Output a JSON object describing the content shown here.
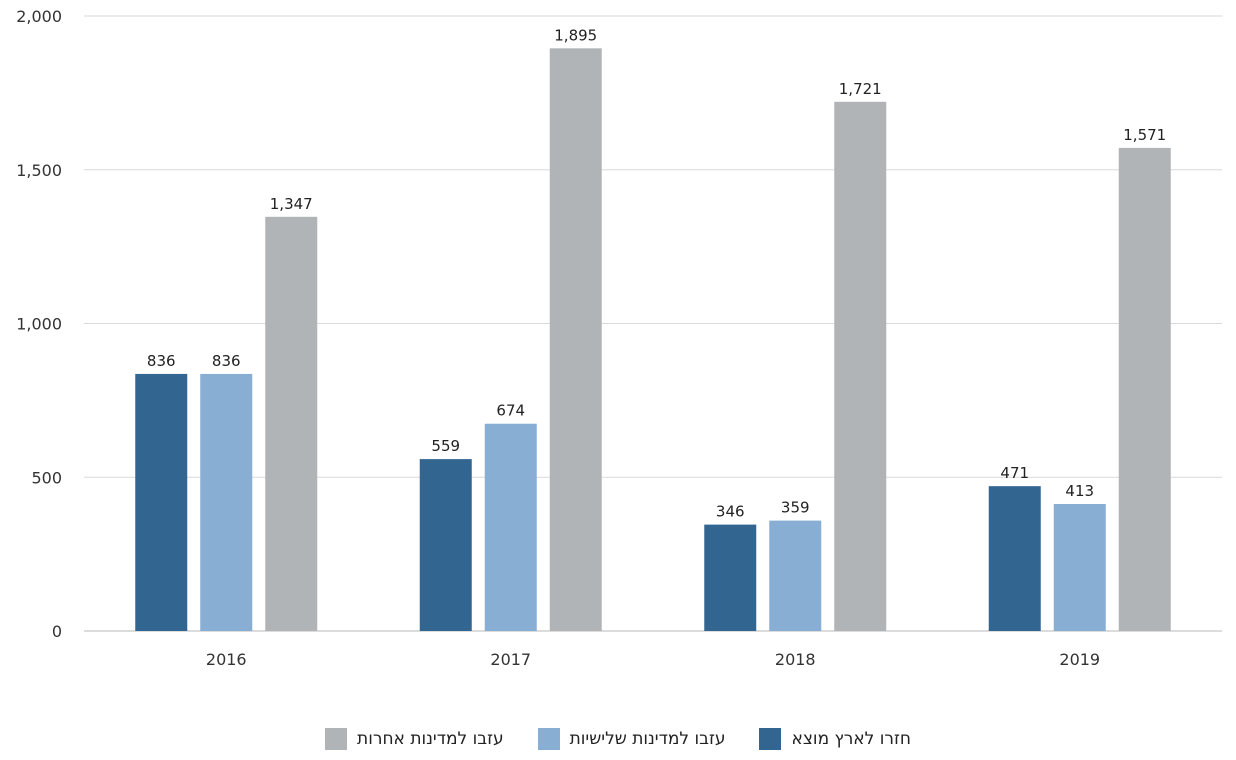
{
  "chart_data": {
    "type": "bar",
    "categories": [
      "2016",
      "2017",
      "2018",
      "2019"
    ],
    "series": [
      {
        "name": "חזרו לארץ מוצא",
        "color": "#336591",
        "values": [
          836,
          559,
          346,
          471
        ]
      },
      {
        "name": "עזבו למדינות שלישיות",
        "color": "#89aed3",
        "values": [
          836,
          674,
          359,
          413
        ]
      },
      {
        "name": "עזבו למדינות אחרות",
        "color": "#b1b4b6",
        "values": [
          1347,
          1895,
          1721,
          1571
        ]
      }
    ],
    "value_labels": [
      [
        "836",
        "559",
        "346",
        "471"
      ],
      [
        "836",
        "674",
        "359",
        "413"
      ],
      [
        "1,347",
        "1,895",
        "1,721",
        "1,571"
      ]
    ],
    "ylim": [
      0,
      2000
    ],
    "yticks": [
      0,
      500,
      1000,
      1500,
      2000
    ],
    "ytick_labels": [
      "0",
      "500",
      "1,000",
      "1,500",
      "2,000"
    ],
    "grid": true,
    "legend_position": "bottom"
  }
}
